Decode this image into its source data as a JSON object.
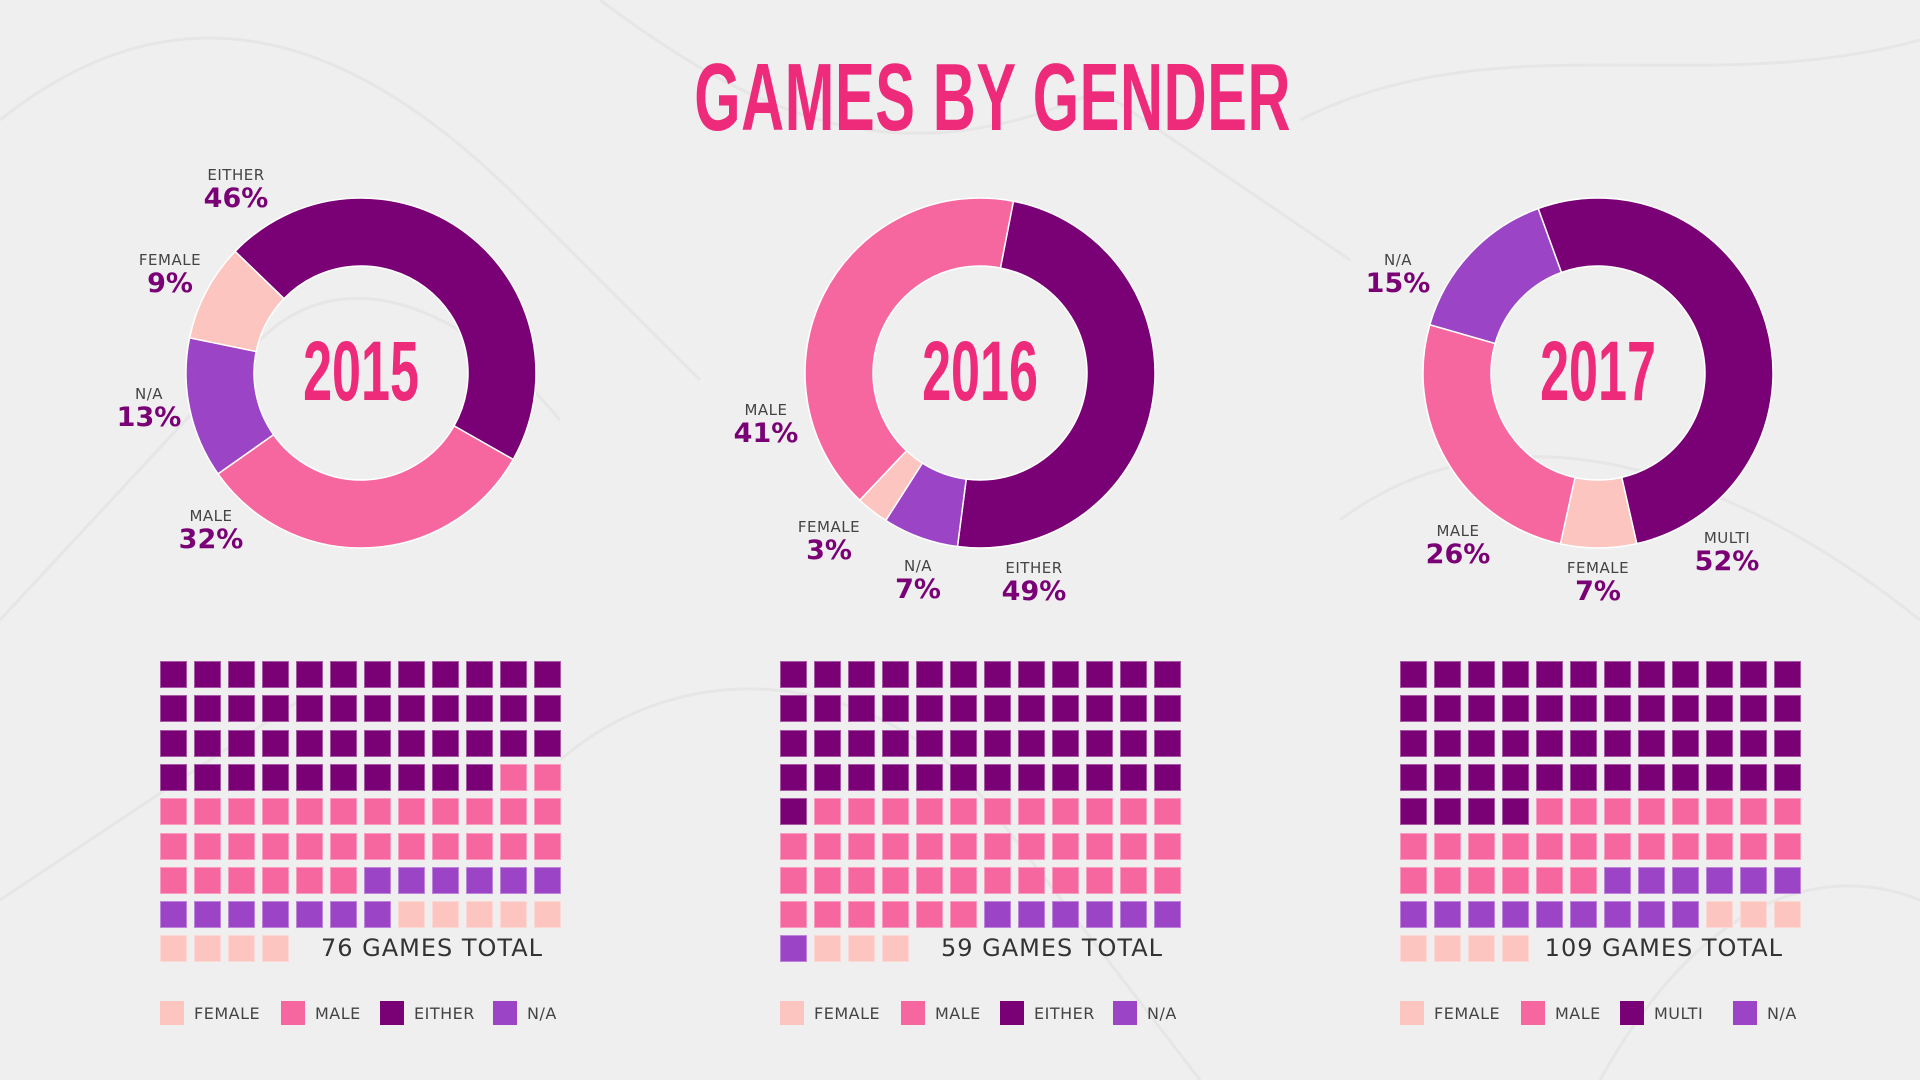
{
  "title": "GAMES BY GENDER",
  "colors": {
    "female": "#fcc5bf",
    "male": "#f7679f",
    "either": "#7a0075",
    "na": "#9b45c6",
    "title": "#ee2a7b",
    "background": "#efefef"
  },
  "chart_data": [
    {
      "type": "pie",
      "title": "2015",
      "categories": [
        "EITHER",
        "MALE",
        "N/A",
        "FEMALE"
      ],
      "values": [
        46,
        32,
        13,
        9
      ],
      "color_keys": [
        "either",
        "male",
        "na",
        "female"
      ],
      "value_labels": [
        "46%",
        "32%",
        "13%",
        "9%"
      ],
      "waffle_total": "76 GAMES TOTAL",
      "legend": [
        "FEMALE",
        "MALE",
        "EITHER",
        "N/A"
      ]
    },
    {
      "type": "pie",
      "title": "2016",
      "categories": [
        "EITHER",
        "N/A",
        "FEMALE",
        "MALE"
      ],
      "values": [
        49,
        7,
        3,
        41
      ],
      "color_keys": [
        "either",
        "na",
        "female",
        "male"
      ],
      "value_labels": [
        "49%",
        "7%",
        "3%",
        "41%"
      ],
      "waffle_total": "59 GAMES TOTAL",
      "legend": [
        "FEMALE",
        "MALE",
        "EITHER",
        "N/A"
      ]
    },
    {
      "type": "pie",
      "title": "2017",
      "categories": [
        "MULTI",
        "FEMALE",
        "MALE",
        "N/A"
      ],
      "values": [
        52,
        7,
        26,
        15
      ],
      "color_keys": [
        "either",
        "female",
        "male",
        "na"
      ],
      "value_labels": [
        "52%",
        "7%",
        "26%",
        "15%"
      ],
      "waffle_total": "109 GAMES TOTAL",
      "legend": [
        "FEMALE",
        "MALE",
        "MULTI",
        "N/A"
      ]
    }
  ]
}
